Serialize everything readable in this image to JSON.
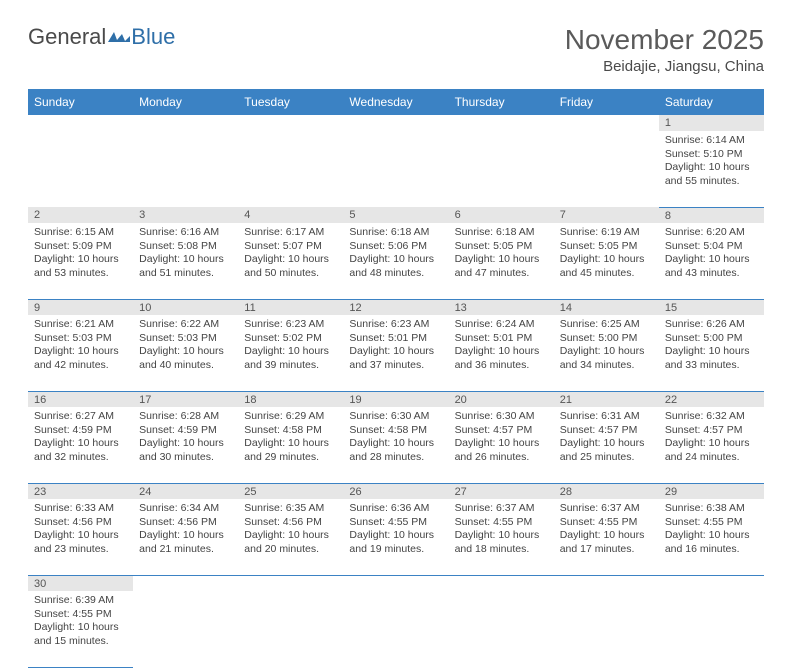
{
  "logo": {
    "textDark": "General",
    "textBlue": "Blue"
  },
  "header": {
    "monthTitle": "November 2025",
    "location": "Beidajie, Jiangsu, China"
  },
  "colors": {
    "headerBg": "#3b82c4",
    "headerText": "#ffffff",
    "dayNumBg": "#e6e6e6",
    "cellBorder": "#3b82c4",
    "bodyText": "#444444"
  },
  "dayHeaders": [
    "Sunday",
    "Monday",
    "Tuesday",
    "Wednesday",
    "Thursday",
    "Friday",
    "Saturday"
  ],
  "weeks": [
    [
      null,
      null,
      null,
      null,
      null,
      null,
      {
        "n": "1",
        "sunrise": "6:14 AM",
        "sunset": "5:10 PM",
        "daylight": "10 hours and 55 minutes."
      }
    ],
    [
      {
        "n": "2",
        "sunrise": "6:15 AM",
        "sunset": "5:09 PM",
        "daylight": "10 hours and 53 minutes."
      },
      {
        "n": "3",
        "sunrise": "6:16 AM",
        "sunset": "5:08 PM",
        "daylight": "10 hours and 51 minutes."
      },
      {
        "n": "4",
        "sunrise": "6:17 AM",
        "sunset": "5:07 PM",
        "daylight": "10 hours and 50 minutes."
      },
      {
        "n": "5",
        "sunrise": "6:18 AM",
        "sunset": "5:06 PM",
        "daylight": "10 hours and 48 minutes."
      },
      {
        "n": "6",
        "sunrise": "6:18 AM",
        "sunset": "5:05 PM",
        "daylight": "10 hours and 47 minutes."
      },
      {
        "n": "7",
        "sunrise": "6:19 AM",
        "sunset": "5:05 PM",
        "daylight": "10 hours and 45 minutes."
      },
      {
        "n": "8",
        "sunrise": "6:20 AM",
        "sunset": "5:04 PM",
        "daylight": "10 hours and 43 minutes."
      }
    ],
    [
      {
        "n": "9",
        "sunrise": "6:21 AM",
        "sunset": "5:03 PM",
        "daylight": "10 hours and 42 minutes."
      },
      {
        "n": "10",
        "sunrise": "6:22 AM",
        "sunset": "5:03 PM",
        "daylight": "10 hours and 40 minutes."
      },
      {
        "n": "11",
        "sunrise": "6:23 AM",
        "sunset": "5:02 PM",
        "daylight": "10 hours and 39 minutes."
      },
      {
        "n": "12",
        "sunrise": "6:23 AM",
        "sunset": "5:01 PM",
        "daylight": "10 hours and 37 minutes."
      },
      {
        "n": "13",
        "sunrise": "6:24 AM",
        "sunset": "5:01 PM",
        "daylight": "10 hours and 36 minutes."
      },
      {
        "n": "14",
        "sunrise": "6:25 AM",
        "sunset": "5:00 PM",
        "daylight": "10 hours and 34 minutes."
      },
      {
        "n": "15",
        "sunrise": "6:26 AM",
        "sunset": "5:00 PM",
        "daylight": "10 hours and 33 minutes."
      }
    ],
    [
      {
        "n": "16",
        "sunrise": "6:27 AM",
        "sunset": "4:59 PM",
        "daylight": "10 hours and 32 minutes."
      },
      {
        "n": "17",
        "sunrise": "6:28 AM",
        "sunset": "4:59 PM",
        "daylight": "10 hours and 30 minutes."
      },
      {
        "n": "18",
        "sunrise": "6:29 AM",
        "sunset": "4:58 PM",
        "daylight": "10 hours and 29 minutes."
      },
      {
        "n": "19",
        "sunrise": "6:30 AM",
        "sunset": "4:58 PM",
        "daylight": "10 hours and 28 minutes."
      },
      {
        "n": "20",
        "sunrise": "6:30 AM",
        "sunset": "4:57 PM",
        "daylight": "10 hours and 26 minutes."
      },
      {
        "n": "21",
        "sunrise": "6:31 AM",
        "sunset": "4:57 PM",
        "daylight": "10 hours and 25 minutes."
      },
      {
        "n": "22",
        "sunrise": "6:32 AM",
        "sunset": "4:57 PM",
        "daylight": "10 hours and 24 minutes."
      }
    ],
    [
      {
        "n": "23",
        "sunrise": "6:33 AM",
        "sunset": "4:56 PM",
        "daylight": "10 hours and 23 minutes."
      },
      {
        "n": "24",
        "sunrise": "6:34 AM",
        "sunset": "4:56 PM",
        "daylight": "10 hours and 21 minutes."
      },
      {
        "n": "25",
        "sunrise": "6:35 AM",
        "sunset": "4:56 PM",
        "daylight": "10 hours and 20 minutes."
      },
      {
        "n": "26",
        "sunrise": "6:36 AM",
        "sunset": "4:55 PM",
        "daylight": "10 hours and 19 minutes."
      },
      {
        "n": "27",
        "sunrise": "6:37 AM",
        "sunset": "4:55 PM",
        "daylight": "10 hours and 18 minutes."
      },
      {
        "n": "28",
        "sunrise": "6:37 AM",
        "sunset": "4:55 PM",
        "daylight": "10 hours and 17 minutes."
      },
      {
        "n": "29",
        "sunrise": "6:38 AM",
        "sunset": "4:55 PM",
        "daylight": "10 hours and 16 minutes."
      }
    ],
    [
      {
        "n": "30",
        "sunrise": "6:39 AM",
        "sunset": "4:55 PM",
        "daylight": "10 hours and 15 minutes."
      },
      null,
      null,
      null,
      null,
      null,
      null
    ]
  ],
  "labels": {
    "sunrise": "Sunrise:",
    "sunset": "Sunset:",
    "daylight": "Daylight:"
  }
}
